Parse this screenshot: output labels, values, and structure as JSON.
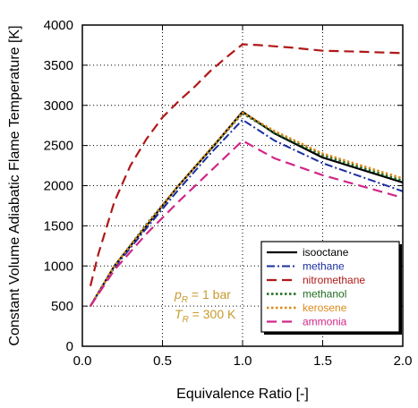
{
  "chart_data": {
    "type": "line",
    "title": "",
    "xlabel": "Equivalence Ratio [-]",
    "ylabel": "Constant Volume Adiabatic Flame Temperature [K]",
    "xlim": [
      0.0,
      2.0
    ],
    "ylim": [
      0,
      4000
    ],
    "x_ticks": [
      "0.0",
      "0.5",
      "1.0",
      "1.5",
      "2.0"
    ],
    "y_ticks": [
      "0",
      "500",
      "1000",
      "1500",
      "2000",
      "2500",
      "3000",
      "3500",
      "4000"
    ],
    "grid": true,
    "legend_position": "lower-right",
    "annotation": {
      "line1_var": "p",
      "line1_sub": "R",
      "line1_rest": " = 1 bar",
      "line2_var": "T",
      "line2_sub": "R",
      "line2_rest": " = 300 K",
      "color": "#c89a2e"
    },
    "series": [
      {
        "name": "isooctane",
        "color": "#000000",
        "dash": "solid",
        "x": [
          0.05,
          0.2,
          0.4,
          0.6,
          0.8,
          1.0,
          1.2,
          1.5,
          2.0
        ],
        "y": [
          500,
          1000,
          1500,
          2000,
          2450,
          2920,
          2650,
          2350,
          2040
        ]
      },
      {
        "name": "methane",
        "color": "#1a2ea0",
        "dash": "dashdot",
        "x": [
          0.05,
          0.2,
          0.4,
          0.6,
          0.8,
          1.0,
          1.2,
          1.5,
          2.0
        ],
        "y": [
          500,
          980,
          1470,
          1950,
          2400,
          2820,
          2560,
          2280,
          1930
        ]
      },
      {
        "name": "nitromethane",
        "color": "#b01818",
        "dash": "longdash",
        "x": [
          0.05,
          0.1,
          0.2,
          0.3,
          0.4,
          0.5,
          0.6,
          0.7,
          0.8,
          0.9,
          1.0,
          1.1,
          1.3,
          1.5,
          1.7,
          2.0
        ],
        "y": [
          750,
          1150,
          1800,
          2250,
          2580,
          2850,
          3050,
          3230,
          3430,
          3600,
          3760,
          3750,
          3720,
          3680,
          3670,
          3650
        ]
      },
      {
        "name": "methanol",
        "color": "#1e6b1e",
        "dash": "dotted",
        "x": [
          0.05,
          0.2,
          0.4,
          0.6,
          0.8,
          1.0,
          1.2,
          1.5,
          2.0
        ],
        "y": [
          500,
          1000,
          1520,
          2000,
          2450,
          2900,
          2660,
          2380,
          2060
        ]
      },
      {
        "name": "kerosene",
        "color": "#d98a1a",
        "dash": "dotted",
        "x": [
          0.05,
          0.2,
          0.4,
          0.6,
          0.8,
          1.0,
          1.2,
          1.5,
          2.0
        ],
        "y": [
          500,
          1000,
          1510,
          2000,
          2460,
          2910,
          2680,
          2400,
          2090
        ]
      },
      {
        "name": "ammonia",
        "color": "#d0288a",
        "dash": "longdash",
        "x": [
          0.05,
          0.2,
          0.4,
          0.6,
          0.8,
          1.0,
          1.2,
          1.5,
          2.0
        ],
        "y": [
          500,
          950,
          1400,
          1800,
          2180,
          2560,
          2340,
          2130,
          1850
        ]
      }
    ]
  }
}
